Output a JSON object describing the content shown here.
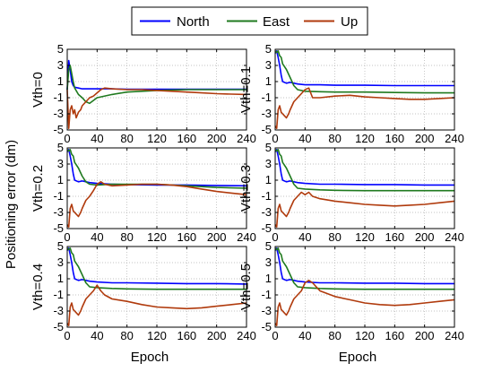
{
  "legend": {
    "entries": [
      {
        "name": "North",
        "color": "#0000ff"
      },
      {
        "name": "East",
        "color": "#1f7a1f"
      },
      {
        "name": "Up",
        "color": "#b03a0c"
      }
    ]
  },
  "figure": {
    "ylabel": "Positioning error (dm)",
    "xlabel": "Epoch"
  },
  "chart_data": [
    {
      "type": "line",
      "title": "",
      "panel_label": "Vth=0",
      "xlim": [
        0,
        240
      ],
      "ylim": [
        -5,
        5
      ],
      "xticks": [
        0,
        40,
        80,
        120,
        160,
        200,
        240
      ],
      "yticks": [
        -5,
        -3,
        -1,
        1,
        3,
        5
      ],
      "grid": true,
      "series": [
        {
          "name": "North",
          "x": [
            0,
            2,
            4,
            6,
            8,
            10,
            15,
            20,
            30,
            40,
            60,
            80,
            120,
            160,
            200,
            240
          ],
          "y": [
            0,
            3.6,
            2.5,
            1.0,
            0.5,
            0.3,
            0.2,
            0.1,
            0.1,
            0.1,
            0.1,
            0.05,
            0.05,
            0.05,
            0.05,
            0.05
          ]
        },
        {
          "name": "East",
          "x": [
            0,
            2,
            4,
            6,
            8,
            10,
            15,
            20,
            25,
            30,
            40,
            60,
            80,
            120,
            160,
            200,
            240
          ],
          "y": [
            0,
            2.5,
            3.0,
            2.0,
            1.0,
            0.2,
            -0.6,
            -1.0,
            -1.5,
            -1.7,
            -1.0,
            -0.6,
            -0.3,
            -0.1,
            0,
            0,
            0
          ]
        },
        {
          "name": "Up",
          "x": [
            0,
            2,
            4,
            6,
            8,
            10,
            12,
            15,
            18,
            20,
            25,
            30,
            35,
            40,
            45,
            50,
            60,
            80,
            100,
            120,
            140,
            160,
            180,
            200,
            220,
            240
          ],
          "y": [
            0,
            -4.8,
            -2.5,
            -2.0,
            -3.0,
            -2.5,
            -3.5,
            -2.8,
            -2.5,
            -2.0,
            -1.5,
            -1.0,
            -0.8,
            -0.4,
            0,
            0.2,
            0.1,
            0,
            0,
            -0.1,
            -0.2,
            -0.3,
            -0.4,
            -0.5,
            -0.55,
            -0.6
          ]
        }
      ]
    },
    {
      "type": "line",
      "title": "",
      "panel_label": "Vth=0.1",
      "xlim": [
        0,
        240
      ],
      "ylim": [
        -5,
        5
      ],
      "xticks": [
        0,
        40,
        80,
        120,
        160,
        200,
        240
      ],
      "yticks": [
        -5,
        -3,
        -1,
        1,
        3,
        5
      ],
      "grid": true,
      "series": [
        {
          "name": "North",
          "x": [
            0,
            2,
            4,
            6,
            8,
            10,
            15,
            20,
            30,
            40,
            60,
            80,
            120,
            160,
            200,
            240
          ],
          "y": [
            4.5,
            4.8,
            4.0,
            3.0,
            1.8,
            1.0,
            0.8,
            0.9,
            0.7,
            0.6,
            0.6,
            0.55,
            0.55,
            0.5,
            0.5,
            0.5
          ]
        },
        {
          "name": "East",
          "x": [
            0,
            2,
            4,
            6,
            8,
            10,
            15,
            20,
            25,
            30,
            40,
            60,
            80,
            120,
            160,
            200,
            240
          ],
          "y": [
            4.8,
            4.6,
            4.8,
            4.2,
            4.0,
            3.2,
            2.5,
            1.5,
            0.5,
            0,
            -0.2,
            -0.25,
            -0.3,
            -0.3,
            -0.35,
            -0.4,
            -0.4
          ]
        },
        {
          "name": "Up",
          "x": [
            0,
            2,
            4,
            6,
            8,
            10,
            12,
            15,
            18,
            20,
            25,
            30,
            35,
            40,
            45,
            50,
            60,
            80,
            100,
            120,
            140,
            160,
            180,
            200,
            220,
            240
          ],
          "y": [
            -4.5,
            -4.8,
            -2.5,
            -2.0,
            -2.8,
            -3.0,
            -3.2,
            -3.5,
            -3.0,
            -2.5,
            -1.5,
            -1.0,
            -0.5,
            0,
            0.2,
            -1.0,
            -1.0,
            -0.8,
            -0.7,
            -0.9,
            -1.0,
            -1.1,
            -1.2,
            -1.2,
            -1.1,
            -1.0
          ]
        }
      ]
    },
    {
      "type": "line",
      "title": "",
      "panel_label": "Vth=0.2",
      "xlim": [
        0,
        240
      ],
      "ylim": [
        -5,
        5
      ],
      "xticks": [
        0,
        40,
        80,
        120,
        160,
        200,
        240
      ],
      "yticks": [
        -5,
        -3,
        -1,
        1,
        3,
        5
      ],
      "grid": true,
      "series": [
        {
          "name": "North",
          "x": [
            0,
            2,
            4,
            6,
            8,
            10,
            15,
            20,
            30,
            40,
            60,
            80,
            120,
            160,
            200,
            240
          ],
          "y": [
            4.5,
            4.8,
            4.0,
            3.0,
            1.8,
            1.0,
            0.8,
            0.9,
            0.7,
            0.6,
            0.5,
            0.45,
            0.4,
            0.4,
            0.35,
            0.3
          ]
        },
        {
          "name": "East",
          "x": [
            0,
            2,
            4,
            6,
            8,
            10,
            15,
            20,
            25,
            30,
            40,
            60,
            80,
            120,
            160,
            200,
            240
          ],
          "y": [
            4.8,
            4.6,
            4.8,
            4.2,
            4.0,
            3.2,
            2.5,
            1.5,
            0.8,
            0.5,
            0.4,
            0.5,
            0.5,
            0.5,
            0.3,
            0.1,
            0
          ]
        },
        {
          "name": "Up",
          "x": [
            0,
            2,
            4,
            6,
            8,
            10,
            12,
            15,
            18,
            20,
            25,
            30,
            35,
            40,
            45,
            50,
            60,
            80,
            100,
            120,
            140,
            160,
            180,
            200,
            220,
            240
          ],
          "y": [
            -4.5,
            -4.8,
            -2.5,
            -2.0,
            -2.8,
            -3.0,
            -3.2,
            -3.5,
            -3.0,
            -2.5,
            -1.5,
            -1.0,
            -0.3,
            0.5,
            0.8,
            0.5,
            0.3,
            0.4,
            0.5,
            0.5,
            0.4,
            0.2,
            -0.1,
            -0.4,
            -0.6,
            -0.8
          ]
        }
      ]
    },
    {
      "type": "line",
      "title": "",
      "panel_label": "Vth=0.3",
      "xlim": [
        0,
        240
      ],
      "ylim": [
        -5,
        5
      ],
      "xticks": [
        0,
        40,
        80,
        120,
        160,
        200,
        240
      ],
      "yticks": [
        -5,
        -3,
        -1,
        1,
        3,
        5
      ],
      "grid": true,
      "series": [
        {
          "name": "North",
          "x": [
            0,
            2,
            4,
            6,
            8,
            10,
            15,
            20,
            30,
            40,
            60,
            80,
            120,
            160,
            200,
            240
          ],
          "y": [
            4.5,
            4.8,
            4.0,
            3.0,
            1.8,
            1.0,
            0.8,
            0.9,
            0.7,
            0.6,
            0.5,
            0.5,
            0.45,
            0.45,
            0.4,
            0.4
          ]
        },
        {
          "name": "East",
          "x": [
            0,
            2,
            4,
            6,
            8,
            10,
            15,
            20,
            25,
            30,
            40,
            60,
            80,
            120,
            160,
            200,
            240
          ],
          "y": [
            4.8,
            4.6,
            4.8,
            4.2,
            4.0,
            3.2,
            2.5,
            1.5,
            0.5,
            0,
            -0.1,
            -0.2,
            -0.25,
            -0.3,
            -0.3,
            -0.3,
            -0.3
          ]
        },
        {
          "name": "Up",
          "x": [
            0,
            2,
            4,
            6,
            8,
            10,
            12,
            15,
            18,
            20,
            25,
            30,
            35,
            40,
            45,
            50,
            60,
            80,
            100,
            120,
            140,
            160,
            180,
            200,
            220,
            240
          ],
          "y": [
            -4.5,
            -4.8,
            -2.5,
            -2.0,
            -2.8,
            -3.0,
            -3.2,
            -3.5,
            -3.0,
            -2.5,
            -1.5,
            -1.0,
            -0.5,
            -0.8,
            -0.5,
            -1.0,
            -1.3,
            -1.6,
            -1.8,
            -2.0,
            -2.1,
            -2.2,
            -2.1,
            -2.0,
            -1.8,
            -1.6
          ]
        }
      ]
    },
    {
      "type": "line",
      "title": "",
      "panel_label": "Vth=0.4",
      "xlim": [
        0,
        240
      ],
      "ylim": [
        -5,
        5
      ],
      "xticks": [
        0,
        40,
        80,
        120,
        160,
        200,
        240
      ],
      "yticks": [
        -5,
        -3,
        -1,
        1,
        3,
        5
      ],
      "grid": true,
      "series": [
        {
          "name": "North",
          "x": [
            0,
            2,
            4,
            6,
            8,
            10,
            15,
            20,
            30,
            40,
            60,
            80,
            120,
            160,
            200,
            240
          ],
          "y": [
            4.5,
            4.8,
            4.0,
            3.0,
            1.8,
            1.0,
            0.8,
            0.9,
            0.7,
            0.6,
            0.5,
            0.5,
            0.45,
            0.4,
            0.4,
            0.35
          ]
        },
        {
          "name": "East",
          "x": [
            0,
            2,
            4,
            6,
            8,
            10,
            15,
            20,
            25,
            30,
            40,
            60,
            80,
            120,
            160,
            200,
            240
          ],
          "y": [
            4.8,
            4.6,
            4.8,
            4.2,
            4.0,
            3.2,
            2.5,
            1.5,
            0.5,
            0,
            -0.1,
            -0.2,
            -0.25,
            -0.3,
            -0.3,
            -0.3,
            -0.3
          ]
        },
        {
          "name": "Up",
          "x": [
            0,
            2,
            4,
            6,
            8,
            10,
            12,
            15,
            18,
            20,
            25,
            30,
            35,
            40,
            45,
            50,
            60,
            80,
            100,
            120,
            140,
            160,
            180,
            200,
            220,
            240
          ],
          "y": [
            -4.5,
            -4.8,
            -2.5,
            -2.0,
            -2.8,
            -3.0,
            -3.2,
            -3.5,
            -3.0,
            -2.5,
            -1.5,
            -1.0,
            -0.5,
            0.2,
            -0.5,
            -1.0,
            -1.5,
            -1.8,
            -2.2,
            -2.5,
            -2.6,
            -2.7,
            -2.6,
            -2.4,
            -2.2,
            -2.0
          ]
        }
      ]
    },
    {
      "type": "line",
      "title": "",
      "panel_label": "Vth=0.5",
      "xlim": [
        0,
        240
      ],
      "ylim": [
        -5,
        5
      ],
      "xticks": [
        0,
        40,
        80,
        120,
        160,
        200,
        240
      ],
      "yticks": [
        -5,
        -3,
        -1,
        1,
        3,
        5
      ],
      "grid": true,
      "series": [
        {
          "name": "North",
          "x": [
            0,
            2,
            4,
            6,
            8,
            10,
            15,
            20,
            30,
            40,
            60,
            80,
            120,
            160,
            200,
            240
          ],
          "y": [
            4.5,
            4.8,
            4.0,
            3.0,
            1.8,
            1.0,
            0.8,
            0.9,
            0.7,
            0.6,
            0.5,
            0.5,
            0.45,
            0.45,
            0.4,
            0.4
          ]
        },
        {
          "name": "East",
          "x": [
            0,
            2,
            4,
            6,
            8,
            10,
            15,
            20,
            25,
            30,
            40,
            60,
            80,
            120,
            160,
            200,
            240
          ],
          "y": [
            4.8,
            4.6,
            4.8,
            4.2,
            4.0,
            3.2,
            2.5,
            1.5,
            0.5,
            0,
            -0.1,
            -0.2,
            -0.25,
            -0.3,
            -0.3,
            -0.3,
            -0.3
          ]
        },
        {
          "name": "Up",
          "x": [
            0,
            2,
            4,
            6,
            8,
            10,
            12,
            15,
            18,
            20,
            25,
            30,
            35,
            40,
            45,
            50,
            60,
            80,
            100,
            120,
            140,
            160,
            180,
            200,
            220,
            240
          ],
          "y": [
            -4.5,
            -4.8,
            -2.5,
            -2.0,
            -2.8,
            -3.0,
            -3.2,
            -3.5,
            -3.0,
            -2.5,
            -1.5,
            -1.0,
            -0.5,
            0.5,
            0.8,
            0.5,
            -0.5,
            -1.2,
            -1.6,
            -2.0,
            -2.2,
            -2.3,
            -2.2,
            -2.0,
            -1.8,
            -1.6
          ]
        }
      ]
    }
  ]
}
